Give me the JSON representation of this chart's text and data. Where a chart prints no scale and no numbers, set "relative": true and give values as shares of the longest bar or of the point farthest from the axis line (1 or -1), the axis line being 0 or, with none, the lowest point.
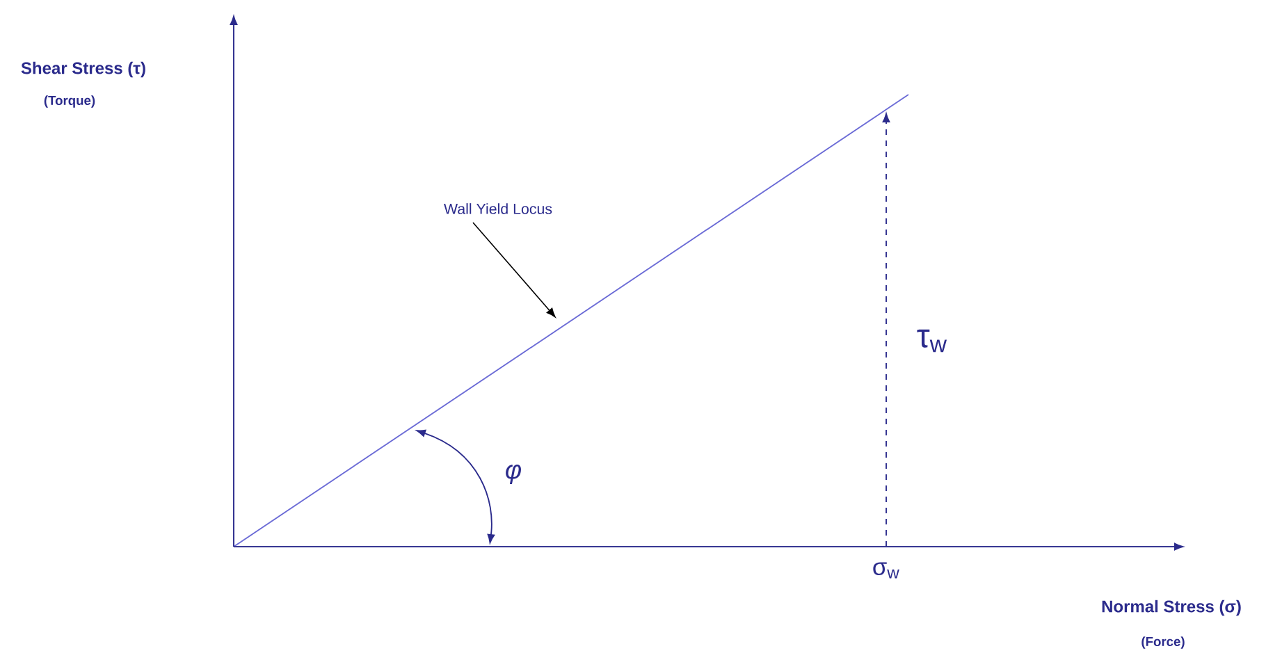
{
  "chart_data": {
    "type": "line",
    "relative": true,
    "xlabel": "Normal Stress (σ)",
    "categories": [
      null,
      null
    ],
    "series": [
      {
        "color": "#6b6bd6",
        "values": [
          0,
          1
        ]
      }
    ],
    "annotations": [
      "Shear Stress (τ)",
      "(Torque)",
      "(Force)",
      "Wall Yield Locus",
      "*φ*",
      "τ$_{w}$",
      "σ$_{w}$"
    ]
  }
}
